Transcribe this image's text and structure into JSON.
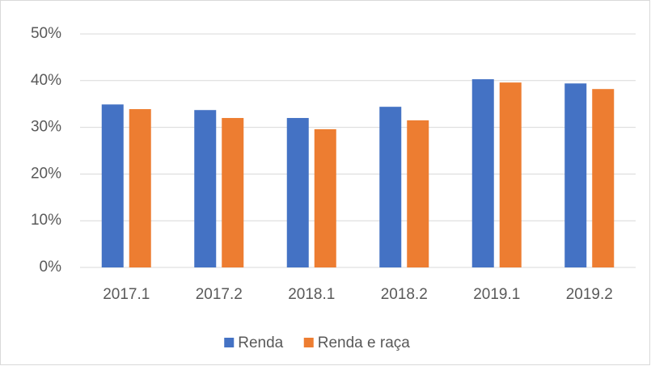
{
  "chart_data": {
    "type": "bar",
    "categories": [
      "2017.1",
      "2017.2",
      "2018.1",
      "2018.2",
      "2019.1",
      "2019.2"
    ],
    "series": [
      {
        "name": "Renda",
        "color": "#4472c4",
        "values": [
          34.9,
          33.7,
          32.0,
          34.4,
          40.3,
          39.4
        ]
      },
      {
        "name": "Renda e raça",
        "color": "#ed7d31",
        "values": [
          33.9,
          32.0,
          29.6,
          31.5,
          39.6,
          38.2
        ]
      }
    ],
    "ylim": [
      0,
      50
    ],
    "yticks": [
      {
        "value": 0,
        "label": "0%"
      },
      {
        "value": 10,
        "label": "10%"
      },
      {
        "value": 20,
        "label": "20%"
      },
      {
        "value": 30,
        "label": "30%"
      },
      {
        "value": 40,
        "label": "40%"
      },
      {
        "value": 50,
        "label": "50%"
      }
    ],
    "grid": true,
    "legend": "bottom"
  }
}
